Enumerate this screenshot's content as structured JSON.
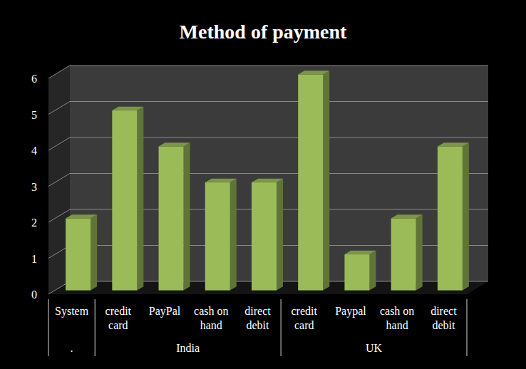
{
  "chart_data": {
    "type": "bar",
    "title": "Method of payment",
    "categories": [
      [
        "System",
        "."
      ],
      [
        "credit card",
        "India"
      ],
      [
        "PayPal",
        "India"
      ],
      [
        "cash on hand",
        "India"
      ],
      [
        "direct debit",
        "India"
      ],
      [
        "credit card",
        "UK"
      ],
      [
        "Paypal",
        "UK"
      ],
      [
        "cash on hand",
        "UK"
      ],
      [
        "direct debit",
        "UK"
      ]
    ],
    "values": [
      2,
      5,
      4,
      3,
      3,
      6,
      1,
      2,
      4
    ],
    "color": "#9bbb59",
    "ylim": [
      0,
      6
    ],
    "yticks": [
      0,
      1,
      2,
      3,
      4,
      5,
      6
    ],
    "grid": true
  }
}
